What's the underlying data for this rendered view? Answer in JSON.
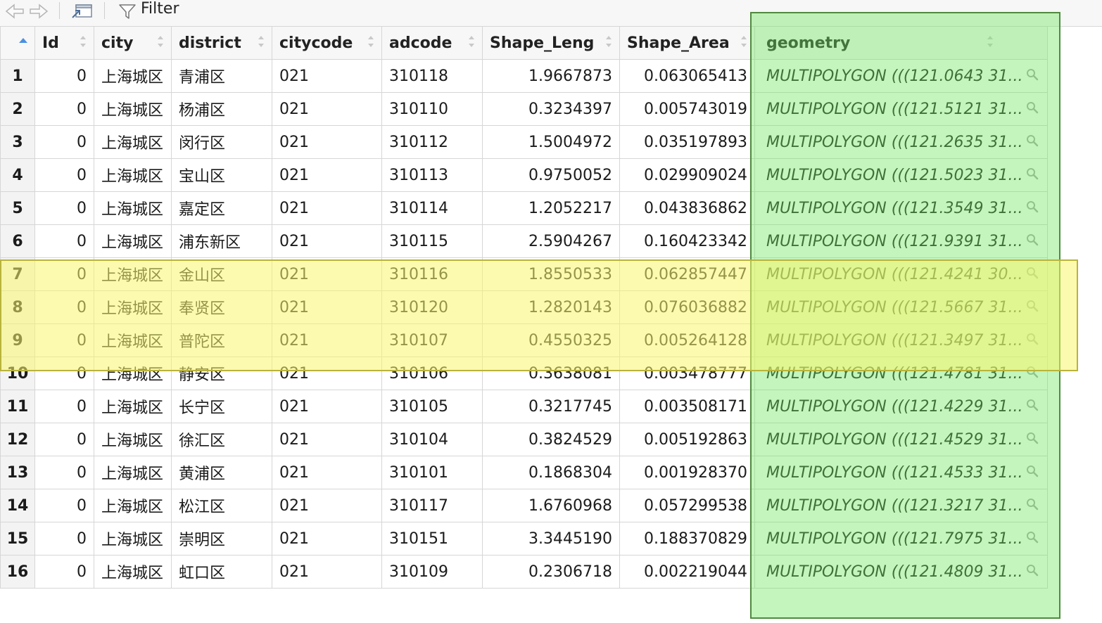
{
  "toolbar": {
    "back_icon": "arrow-left-icon",
    "forward_icon": "arrow-right-icon",
    "popout_icon": "popout-window-icon",
    "filter_icon": "funnel-icon",
    "filter_label": "Filter"
  },
  "table": {
    "columns": [
      "Id",
      "city",
      "district",
      "citycode",
      "adcode",
      "Shape_Leng",
      "Shape_Area",
      "geometry"
    ],
    "rows": [
      {
        "n": "1",
        "id": "0",
        "city": "上海城区",
        "district": "青浦区",
        "citycode": "021",
        "adcode": "310118",
        "leng": "1.9667873",
        "area": "0.063065413",
        "geom": "MULTIPOLYGON (((121.0643 31..."
      },
      {
        "n": "2",
        "id": "0",
        "city": "上海城区",
        "district": "杨浦区",
        "citycode": "021",
        "adcode": "310110",
        "leng": "0.3234397",
        "area": "0.005743019",
        "geom": "MULTIPOLYGON (((121.5121 31..."
      },
      {
        "n": "3",
        "id": "0",
        "city": "上海城区",
        "district": "闵行区",
        "citycode": "021",
        "adcode": "310112",
        "leng": "1.5004972",
        "area": "0.035197893",
        "geom": "MULTIPOLYGON (((121.2635 31..."
      },
      {
        "n": "4",
        "id": "0",
        "city": "上海城区",
        "district": "宝山区",
        "citycode": "021",
        "adcode": "310113",
        "leng": "0.9750052",
        "area": "0.029909024",
        "geom": "MULTIPOLYGON (((121.5023 31..."
      },
      {
        "n": "5",
        "id": "0",
        "city": "上海城区",
        "district": "嘉定区",
        "citycode": "021",
        "adcode": "310114",
        "leng": "1.2052217",
        "area": "0.043836862",
        "geom": "MULTIPOLYGON (((121.3549 31..."
      },
      {
        "n": "6",
        "id": "0",
        "city": "上海城区",
        "district": "浦东新区",
        "citycode": "021",
        "adcode": "310115",
        "leng": "2.5904267",
        "area": "0.160423342",
        "geom": "MULTIPOLYGON (((121.9391 31..."
      },
      {
        "n": "7",
        "id": "0",
        "city": "上海城区",
        "district": "金山区",
        "citycode": "021",
        "adcode": "310116",
        "leng": "1.8550533",
        "area": "0.062857447",
        "geom": "MULTIPOLYGON (((121.4241 30..."
      },
      {
        "n": "8",
        "id": "0",
        "city": "上海城区",
        "district": "奉贤区",
        "citycode": "021",
        "adcode": "310120",
        "leng": "1.2820143",
        "area": "0.076036882",
        "geom": "MULTIPOLYGON (((121.5667 31..."
      },
      {
        "n": "9",
        "id": "0",
        "city": "上海城区",
        "district": "普陀区",
        "citycode": "021",
        "adcode": "310107",
        "leng": "0.4550325",
        "area": "0.005264128",
        "geom": "MULTIPOLYGON (((121.3497 31..."
      },
      {
        "n": "10",
        "id": "0",
        "city": "上海城区",
        "district": "静安区",
        "citycode": "021",
        "adcode": "310106",
        "leng": "0.3638081",
        "area": "0.003478777",
        "geom": "MULTIPOLYGON (((121.4781 31..."
      },
      {
        "n": "11",
        "id": "0",
        "city": "上海城区",
        "district": "长宁区",
        "citycode": "021",
        "adcode": "310105",
        "leng": "0.3217745",
        "area": "0.003508171",
        "geom": "MULTIPOLYGON (((121.4229 31..."
      },
      {
        "n": "12",
        "id": "0",
        "city": "上海城区",
        "district": "徐汇区",
        "citycode": "021",
        "adcode": "310104",
        "leng": "0.3824529",
        "area": "0.005192863",
        "geom": "MULTIPOLYGON (((121.4529 31..."
      },
      {
        "n": "13",
        "id": "0",
        "city": "上海城区",
        "district": "黄浦区",
        "citycode": "021",
        "adcode": "310101",
        "leng": "0.1868304",
        "area": "0.001928370",
        "geom": "MULTIPOLYGON (((121.4533 31..."
      },
      {
        "n": "14",
        "id": "0",
        "city": "上海城区",
        "district": "松江区",
        "citycode": "021",
        "adcode": "310117",
        "leng": "1.6760968",
        "area": "0.057299538",
        "geom": "MULTIPOLYGON (((121.3217 31..."
      },
      {
        "n": "15",
        "id": "0",
        "city": "上海城区",
        "district": "崇明区",
        "citycode": "021",
        "adcode": "310151",
        "leng": "3.3445190",
        "area": "0.188370829",
        "geom": "MULTIPOLYGON (((121.7975 31..."
      },
      {
        "n": "16",
        "id": "0",
        "city": "上海城区",
        "district": "虹口区",
        "citycode": "021",
        "adcode": "310109",
        "leng": "0.2306718",
        "area": "0.002219044",
        "geom": "MULTIPOLYGON (((121.4809 31..."
      }
    ]
  },
  "highlights": {
    "column_color": "#70e660",
    "rows_color": "#f8f56e"
  }
}
